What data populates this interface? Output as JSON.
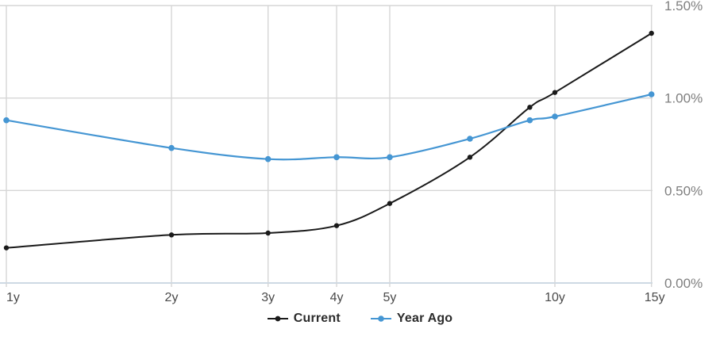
{
  "chart_data": {
    "type": "line",
    "title": "",
    "x": [
      1,
      2,
      3,
      4,
      5,
      7,
      9,
      10,
      15
    ],
    "x_axis": {
      "scale": "log",
      "unit": "years",
      "tick_values": [
        1,
        2,
        3,
        4,
        5,
        10,
        15
      ],
      "tick_labels": [
        "1y",
        "2y",
        "3y",
        "4y",
        "5y",
        "10y",
        "15y"
      ],
      "range": [
        1,
        15
      ]
    },
    "y_axis": {
      "side": "right",
      "tick_values": [
        0,
        0.5,
        1.0,
        1.5
      ],
      "tick_labels": [
        "0.00%",
        "0.50%",
        "1.00%",
        "1.50%"
      ],
      "range": [
        0,
        1.5
      ],
      "format": "percent"
    },
    "series": [
      {
        "name": "Current",
        "color": "#1a1a1a",
        "values": [
          0.19,
          0.26,
          0.27,
          0.31,
          0.43,
          0.68,
          0.95,
          1.03,
          1.35
        ]
      },
      {
        "name": "Year Ago",
        "color": "#4596d3",
        "values": [
          0.88,
          0.73,
          0.67,
          0.68,
          0.68,
          0.78,
          0.88,
          0.9,
          1.02
        ]
      }
    ],
    "grid": true,
    "legend_position": "bottom",
    "marker": "dot",
    "line_style": "smooth"
  },
  "colors": {
    "gridline": "#d6d6d6",
    "axis_line": "#cdd9e4",
    "y_tick_text": "#7f7f7f",
    "x_tick_text": "#4a4a4a",
    "background": "#ffffff"
  }
}
